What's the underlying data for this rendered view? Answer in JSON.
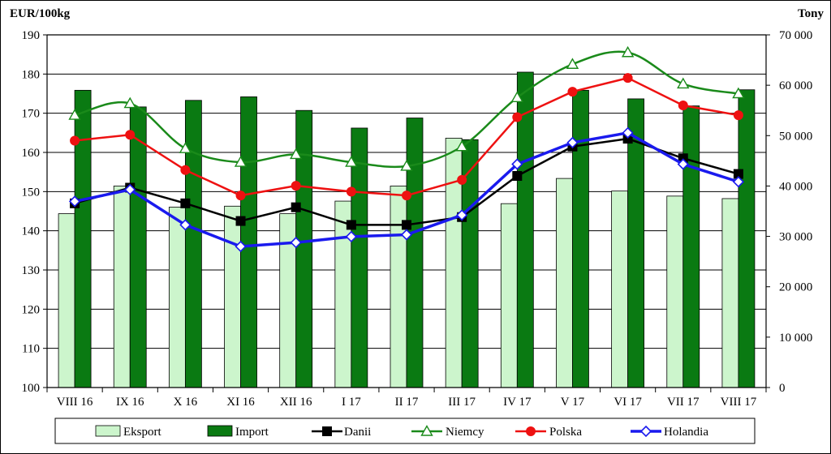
{
  "chart_data": {
    "type": "bar-line-combo",
    "categories": [
      "VIII 16",
      "IX 16",
      "X 16",
      "XI 16",
      "XII 16",
      "I 17",
      "II 17",
      "III 17",
      "IV 17",
      "V 17",
      "VI 17",
      "VII 17",
      "VIII 17"
    ],
    "y_left": {
      "label": "EUR/100kg",
      "range": [
        100,
        190
      ],
      "ticks": [
        100,
        110,
        120,
        130,
        140,
        150,
        160,
        170,
        180,
        190
      ]
    },
    "y_right": {
      "label": "Tony",
      "range": [
        0,
        70000
      ],
      "ticks": [
        0,
        10000,
        20000,
        30000,
        40000,
        50000,
        60000,
        70000
      ],
      "tick_labels": [
        "0",
        "10 000",
        "20 000",
        "30 000",
        "40 000",
        "50 000",
        "60 000",
        "70 000"
      ]
    },
    "bars": [
      {
        "name": "Eksport",
        "axis": "right",
        "color": "#ccf5cc",
        "values": [
          34500,
          40000,
          35800,
          36000,
          34500,
          37000,
          40000,
          49500,
          36500,
          41500,
          39000,
          38000,
          37500
        ]
      },
      {
        "name": "Import",
        "axis": "right",
        "color": "#0a7a12",
        "values": [
          59000,
          55700,
          57000,
          57700,
          55000,
          51500,
          53500,
          49200,
          62600,
          59000,
          57300,
          55900,
          59100
        ]
      }
    ],
    "lines": [
      {
        "name": "Niemcy",
        "axis": "left",
        "color": "#1a8a1a",
        "marker": "triangle",
        "smooth": true,
        "values": [
          169.5,
          172.5,
          161,
          157.5,
          159.5,
          157.5,
          156.5,
          161.5,
          174,
          182.5,
          185.5,
          177.5,
          175
        ]
      },
      {
        "name": "Polska",
        "axis": "left",
        "color": "#ee1111",
        "marker": "circle",
        "values": [
          163,
          164.5,
          155.5,
          149,
          151.5,
          150,
          149,
          153,
          169,
          175.5,
          179,
          172,
          169.5
        ]
      },
      {
        "name": "Dania",
        "axis": "left",
        "color": "#000000",
        "marker": "square",
        "values": [
          147,
          151,
          147,
          142.5,
          146,
          141.5,
          141.5,
          143.5,
          154,
          161.5,
          163.5,
          158.5,
          154.5
        ]
      },
      {
        "name": "Holandia",
        "axis": "left",
        "color": "#1a1aee",
        "marker": "diamond",
        "values": [
          147.5,
          150.5,
          141.5,
          136,
          137,
          138.5,
          139,
          144,
          157,
          162.5,
          165,
          157,
          152.5
        ]
      }
    ],
    "legend": {
      "position": "bottom",
      "labels": [
        "Eksport",
        "Import",
        "Danii",
        "Niemcy",
        "Polska",
        "Holandia"
      ]
    },
    "grid": "horizontal"
  }
}
